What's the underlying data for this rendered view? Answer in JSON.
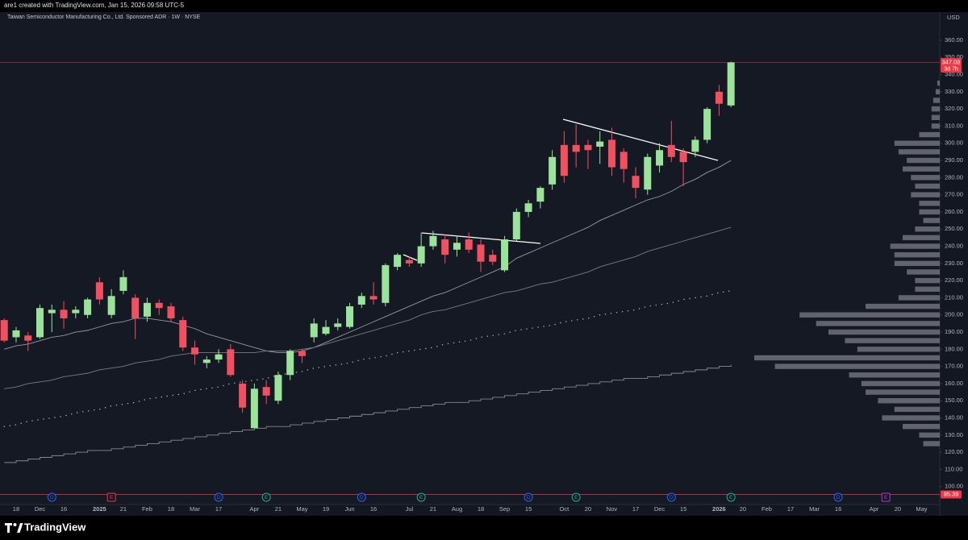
{
  "header": "are1 created with TradingView.com, Jan 15, 2026 09:58 UTC-5",
  "footer": "TradingView",
  "chart_data": {
    "type": "candlestick",
    "title": "Taiwan Semiconductor Manufacturing Co., Ltd. Sponsored ADR · 1W · NYSE",
    "currency": "USD",
    "categories": [
      null,
      "18",
      null,
      "Dec",
      null,
      "16",
      null,
      null,
      "2025",
      null,
      "21",
      null,
      "Feb",
      null,
      "18",
      null,
      "Mar",
      null,
      "17",
      null,
      null,
      "Apr",
      null,
      "21",
      null,
      "May",
      null,
      "19",
      null,
      "Jun",
      null,
      "16",
      null,
      null,
      "Jul",
      null,
      "21",
      null,
      "Aug",
      null,
      "18",
      null,
      "Sep",
      null,
      "15",
      null,
      null,
      "Oct",
      null,
      "20",
      null,
      "Nov",
      null,
      "17",
      null,
      "Dec",
      null,
      "15",
      null,
      null,
      "2026",
      null,
      "20",
      null,
      "Feb",
      null,
      "17",
      null,
      "Mar",
      null,
      "16",
      null,
      null,
      "Apr",
      null,
      "20",
      null,
      "May"
    ],
    "open": [
      197,
      187,
      188,
      187,
      201,
      203,
      201,
      200,
      219,
      200,
      214,
      210,
      199,
      207,
      205,
      197,
      181,
      172,
      174,
      180,
      160,
      134,
      158,
      150,
      165,
      179,
      187,
      189,
      193,
      193,
      206,
      211,
      207,
      228,
      232,
      230,
      240,
      244,
      238,
      244,
      241,
      235,
      226,
      244,
      260,
      266,
      276,
      299,
      299,
      299,
      298,
      302,
      295,
      281,
      273,
      287,
      299,
      295,
      295,
      302,
      330,
      322,
      null,
      null,
      null,
      null,
      null,
      null,
      null,
      null,
      null,
      null,
      null,
      null,
      null,
      null,
      null,
      null
    ],
    "high": [
      198,
      193,
      190,
      206,
      206,
      208,
      205,
      210,
      222,
      215,
      226,
      212,
      210,
      209,
      207,
      199,
      185,
      176,
      180,
      183,
      162,
      160,
      162,
      167,
      180,
      180,
      198,
      197,
      198,
      207,
      213,
      219,
      230,
      236,
      234,
      248,
      249,
      247,
      246,
      248,
      244,
      238,
      246,
      262,
      267,
      275,
      296,
      307,
      311,
      302,
      307,
      309,
      297,
      286,
      294,
      300,
      313,
      297,
      304,
      321,
      334,
      347.5,
      null,
      null,
      null,
      null,
      null,
      null,
      null,
      null,
      null,
      null,
      null,
      null,
      null,
      null,
      null,
      null
    ],
    "low": [
      184,
      184,
      179,
      186,
      190,
      192,
      198,
      198,
      206,
      198,
      212,
      186,
      196,
      200,
      196,
      179,
      171,
      169,
      172,
      164,
      143,
      134,
      148,
      148,
      162,
      172,
      184,
      188,
      191,
      192,
      204,
      206,
      205,
      226,
      228,
      228,
      238,
      230,
      234,
      236,
      225,
      229,
      225,
      243,
      257,
      262,
      273,
      277,
      286,
      285,
      288,
      281,
      277,
      268,
      270,
      283,
      289,
      275,
      292,
      300,
      316,
      321,
      null,
      null,
      null,
      null,
      null,
      null,
      null,
      null,
      null,
      null,
      null,
      null,
      null,
      null,
      null,
      null
    ],
    "close": [
      185,
      191,
      185,
      204,
      203,
      198,
      203,
      209,
      209,
      211,
      222,
      198,
      207,
      204,
      198,
      181,
      177,
      174,
      177,
      165,
      146,
      157,
      153,
      165,
      179,
      176,
      195,
      193,
      195,
      205,
      211,
      209,
      229,
      235,
      230,
      240,
      246,
      235,
      242,
      238,
      231,
      231,
      244,
      260,
      265,
      274,
      292,
      281,
      295,
      296,
      301,
      286,
      285,
      274,
      292,
      296,
      292,
      289,
      302,
      320,
      323,
      347.08,
      null,
      null,
      null,
      null,
      null,
      null,
      null,
      null,
      null,
      null,
      null,
      null,
      null,
      null,
      null,
      null
    ],
    "up_color": "#9be39a",
    "down_color": "#f0505f",
    "lines": [
      {
        "color": "#9598a1",
        "style": "solid",
        "values": [
          180,
          182,
          183,
          185,
          187,
          188,
          190,
          191,
          193,
          195,
          196,
          198,
          198,
          197,
          196,
          194,
          192,
          189,
          187,
          185,
          183,
          181,
          179,
          178,
          178,
          179,
          181,
          184,
          187,
          190,
          193,
          196,
          199,
          202,
          205,
          208,
          211,
          213,
          216,
          219,
          222,
          225,
          228,
          233,
          236,
          239,
          242,
          245,
          248,
          251,
          255,
          258,
          261,
          264,
          267,
          269,
          272,
          276,
          279,
          283,
          286,
          290,
          null,
          null,
          null,
          null,
          null,
          null,
          null,
          null,
          null,
          null,
          null,
          null,
          null,
          null,
          null,
          null
        ]
      },
      {
        "color": "#787b86",
        "style": "solid",
        "values": [
          157,
          158,
          160,
          161,
          162,
          164,
          165,
          166,
          168,
          169,
          170,
          172,
          173,
          174,
          176,
          177,
          178,
          178,
          178,
          178,
          178,
          178,
          179,
          179,
          179,
          180,
          181,
          183,
          185,
          187,
          189,
          191,
          193,
          195,
          197,
          200,
          202,
          203,
          205,
          207,
          209,
          211,
          213,
          214,
          216,
          218,
          219,
          221,
          223,
          225,
          228,
          230,
          232,
          234,
          237,
          239,
          241,
          243,
          245,
          247,
          249,
          251,
          null,
          null,
          null,
          null,
          null,
          null,
          null,
          null,
          null,
          null,
          null,
          null,
          null,
          null,
          null,
          null
        ]
      },
      {
        "color": "#b2b5be",
        "style": "dotted",
        "values": [
          135,
          136,
          138,
          139,
          140,
          141,
          143,
          144,
          145,
          147,
          148,
          149,
          151,
          152,
          153,
          154,
          156,
          157,
          158,
          160,
          161,
          162,
          163,
          165,
          166,
          167,
          169,
          170,
          171,
          172,
          174,
          175,
          176,
          178,
          179,
          180,
          181,
          183,
          184,
          185,
          187,
          188,
          189,
          191,
          192,
          193,
          194,
          196,
          197,
          198,
          200,
          201,
          202,
          203,
          205,
          206,
          207,
          209,
          210,
          211,
          213,
          214,
          null,
          null,
          null,
          null,
          null,
          null,
          null,
          null,
          null,
          null,
          null,
          null,
          null,
          null,
          null,
          null
        ]
      },
      {
        "color": "#868993",
        "style": "step",
        "values": [
          114,
          115,
          116,
          117,
          118,
          119,
          120,
          121,
          121,
          122,
          123,
          124,
          125,
          126,
          127,
          128,
          129,
          130,
          131,
          132,
          133,
          134,
          135,
          135,
          136,
          137,
          138,
          139,
          140,
          141,
          142,
          143,
          144,
          145,
          146,
          147,
          148,
          149,
          149,
          150,
          151,
          152,
          153,
          154,
          155,
          156,
          157,
          158,
          159,
          160,
          161,
          162,
          163,
          163,
          164,
          165,
          166,
          167,
          168,
          169,
          170,
          171,
          null,
          null,
          null,
          null,
          null,
          null,
          null,
          null,
          null,
          null,
          null,
          null,
          null,
          null,
          null,
          null
        ]
      }
    ],
    "events": [
      null,
      null,
      null,
      null,
      {
        "label": "D",
        "color": "#2962ff",
        "shape": "circle"
      },
      null,
      null,
      null,
      null,
      {
        "label": "E",
        "color": "#f23645",
        "shape": "square"
      },
      null,
      null,
      null,
      null,
      null,
      null,
      null,
      null,
      {
        "label": "D",
        "color": "#2962ff",
        "shape": "circle"
      },
      null,
      null,
      null,
      {
        "label": "E",
        "color": "#22ab94",
        "shape": "circle"
      },
      null,
      null,
      null,
      null,
      null,
      null,
      null,
      {
        "label": "D",
        "color": "#2962ff",
        "shape": "circle"
      },
      null,
      null,
      null,
      null,
      {
        "label": "E",
        "color": "#22ab94",
        "shape": "circle"
      },
      null,
      null,
      null,
      null,
      null,
      null,
      null,
      null,
      {
        "label": "D",
        "color": "#2962ff",
        "shape": "circle"
      },
      null,
      null,
      null,
      {
        "label": "E",
        "color": "#22ab94",
        "shape": "circle"
      },
      null,
      null,
      null,
      null,
      null,
      null,
      null,
      {
        "label": "D",
        "color": "#2962ff",
        "shape": "circle"
      },
      null,
      null,
      null,
      null,
      {
        "label": "E",
        "color": "#22ab94",
        "shape": "circle"
      },
      null,
      null,
      null,
      null,
      null,
      null,
      null,
      null,
      {
        "label": "D",
        "color": "#2962ff",
        "shape": "circle"
      },
      null,
      null,
      null,
      {
        "label": "E",
        "color": "#b339d3",
        "shape": "square"
      },
      null,
      null,
      null
    ],
    "volume_profile": {
      "levels": [
        125,
        130,
        135,
        140,
        145,
        150,
        155,
        160,
        165,
        170,
        175,
        180,
        185,
        190,
        195,
        200,
        205,
        210,
        215,
        220,
        225,
        230,
        235,
        240,
        245,
        250,
        255,
        260,
        265,
        270,
        275,
        280,
        285,
        290,
        295,
        300,
        305,
        310,
        315,
        320,
        325,
        330,
        335
      ],
      "values": [
        20,
        25,
        45,
        70,
        55,
        75,
        90,
        95,
        110,
        200,
        225,
        100,
        115,
        135,
        150,
        170,
        90,
        50,
        30,
        30,
        40,
        55,
        55,
        60,
        45,
        30,
        20,
        25,
        25,
        35,
        30,
        35,
        45,
        40,
        50,
        55,
        25,
        10,
        10,
        10,
        8,
        5,
        3
      ],
      "color": "#7b7e88"
    },
    "last_price": 347.08,
    "countdown": "3d 7h",
    "marker_price": 95.39,
    "price_color": "#f23645",
    "ylim": [
      90,
      376.4
    ],
    "yticks": [
      {
        "value": 100,
        "label": "100.00"
      },
      {
        "value": 110,
        "label": "110.00"
      },
      {
        "value": 120,
        "label": "120.00"
      },
      {
        "value": 130,
        "label": "130.00"
      },
      {
        "value": 140,
        "label": "140.00"
      },
      {
        "value": 150,
        "label": "150.00"
      },
      {
        "value": 160,
        "label": "160.00"
      },
      {
        "value": 170,
        "label": "170.00"
      },
      {
        "value": 180,
        "label": "180.00"
      },
      {
        "value": 190,
        "label": "190.00"
      },
      {
        "value": 200,
        "label": "200.00"
      },
      {
        "value": 210,
        "label": "210.00"
      },
      {
        "value": 220,
        "label": "220.00"
      },
      {
        "value": 230,
        "label": "230.00"
      },
      {
        "value": 240,
        "label": "240.00"
      },
      {
        "value": 250,
        "label": "250.00"
      },
      {
        "value": 260,
        "label": "260.00"
      },
      {
        "value": 270,
        "label": "270.00"
      },
      {
        "value": 280,
        "label": "280.00"
      },
      {
        "value": 290,
        "label": "290.00"
      },
      {
        "value": 300,
        "label": "300.00"
      },
      {
        "value": 310,
        "label": "310.00"
      },
      {
        "value": 320,
        "label": "320.00"
      },
      {
        "value": 330,
        "label": "330.00"
      },
      {
        "value": 340,
        "label": "340.00"
      },
      {
        "value": 350,
        "label": "350.00"
      },
      {
        "value": 360,
        "label": "360.00"
      }
    ],
    "grid": false
  }
}
